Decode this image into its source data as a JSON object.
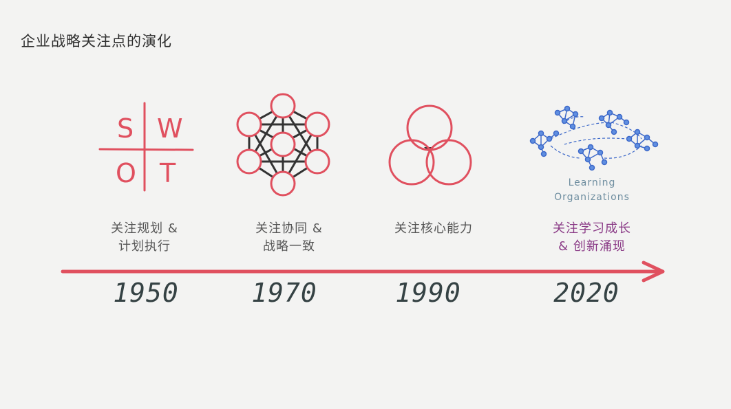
{
  "title": "企业战略关注点的演化",
  "swot": {
    "s": "S",
    "w": "W",
    "o": "O",
    "t": "T"
  },
  "stages": [
    {
      "caption_line1": "关注规划 &",
      "caption_line2": "计划执行",
      "year": "1950"
    },
    {
      "caption_line1": "关注协同 &",
      "caption_line2": "战略一致",
      "year": "1970"
    },
    {
      "caption_line1": "关注核心能力",
      "caption_line2": "",
      "year": "1990"
    },
    {
      "caption_line1": "关注学习成长",
      "caption_line2": "& 创新涌现",
      "year": "2020"
    }
  ],
  "learning_org": {
    "line1": "Learning",
    "line2": "Organizations"
  },
  "colors": {
    "accent": "#e0505f",
    "network_blue": "#3c68c9",
    "caption_purple": "#8a3a86",
    "year": "#354244"
  }
}
